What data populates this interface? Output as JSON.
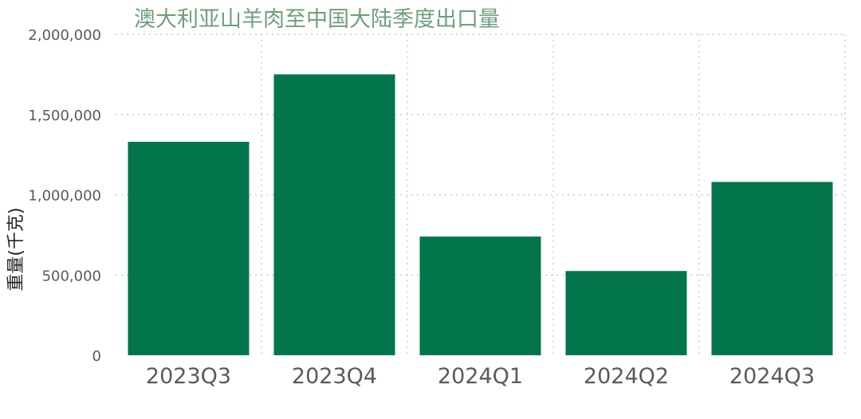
{
  "chart_data": {
    "type": "bar",
    "title": "澳大利亚山羊肉至中国大陆季度出口量",
    "xlabel": "",
    "ylabel": "重量(千克)",
    "categories": [
      "2023Q3",
      "2023Q4",
      "2024Q1",
      "2024Q2",
      "2024Q3"
    ],
    "values": [
      1330000,
      1750000,
      740000,
      525000,
      1080000
    ],
    "ylim": [
      0,
      2000000
    ],
    "yticks": [
      0,
      500000,
      1000000,
      1500000,
      2000000
    ],
    "ytick_labels": [
      "0",
      "500,000",
      "1,000,000",
      "1,500,000",
      "2,000,000"
    ],
    "grid": true,
    "legend": "none"
  },
  "colors": {
    "bar": "#02754a",
    "title": "#6f9f7a",
    "grid": "#cccccc"
  }
}
